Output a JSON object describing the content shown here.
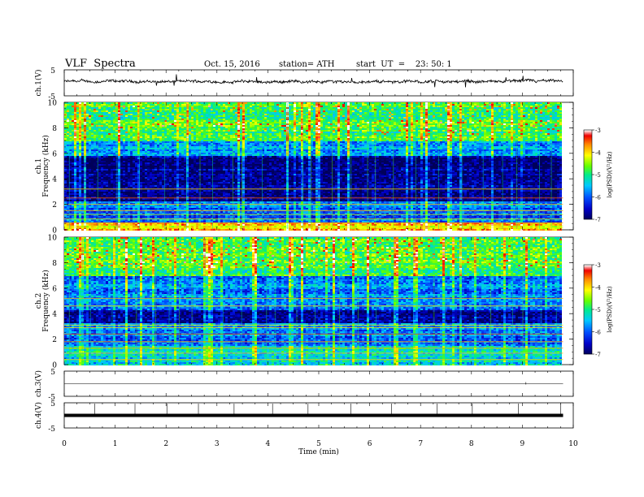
{
  "header": {
    "title": "VLF  Spectra",
    "date": "Oct. 15, 2016",
    "station": "station= ATH",
    "start": "start  UT  =    23: 50: 1"
  },
  "chart_data": [
    {
      "type": "line",
      "panel": "ch1-waveform",
      "ylabel": "ch.1(V)",
      "ylim": [
        -5,
        5
      ],
      "yticks": [
        "5",
        "-5"
      ],
      "xlim": [
        0,
        10
      ],
      "x_extent": [
        0,
        9.8
      ],
      "baseline_v": 0.5,
      "noise_amplitude_v": "±0.6 with spikes to ±3"
    },
    {
      "type": "heatmap",
      "panel": "ch1-spectrogram",
      "ylabel_channel": "ch.1",
      "ylabel": "Frequency  (kHz)",
      "ylim": [
        0,
        10
      ],
      "yticks": [
        "0",
        "2",
        "4",
        "6",
        "8",
        "10"
      ],
      "xlim": [
        0,
        10
      ],
      "x_extent": [
        0,
        9.8
      ],
      "colorbar": {
        "label": "log(PSD)(V²/Hz)",
        "range": [
          -7,
          -3
        ],
        "ticks": [
          "-3",
          "-4",
          "-5",
          "-6",
          "-7"
        ]
      },
      "band_profile": [
        {
          "khz": [
            0,
            0.6
          ],
          "logpsd": -4.0
        },
        {
          "khz": [
            0.6,
            2.2
          ],
          "logpsd": -5.9
        },
        {
          "khz": [
            2.2,
            5.8
          ],
          "logpsd": -6.8
        },
        {
          "khz": [
            5.8,
            7.0
          ],
          "logpsd": -5.7
        },
        {
          "khz": [
            7.0,
            10
          ],
          "logpsd": -4.8
        }
      ]
    },
    {
      "type": "heatmap",
      "panel": "ch2-spectrogram",
      "ylabel_channel": "ch.2",
      "ylabel": "Frequency  (kHz)",
      "ylim": [
        0,
        10
      ],
      "yticks": [
        "0",
        "2",
        "4",
        "6",
        "8",
        "10"
      ],
      "xlim": [
        0,
        10
      ],
      "x_extent": [
        0,
        9.8
      ],
      "colorbar": {
        "label": "log(PSD)(V²/Hz)",
        "range": [
          -7,
          -3
        ],
        "ticks": [
          "-3",
          "-4",
          "-5",
          "-6",
          "-7"
        ]
      },
      "band_profile": [
        {
          "khz": [
            0,
            1.5
          ],
          "logpsd": -5.3
        },
        {
          "khz": [
            1.5,
            3.3
          ],
          "logpsd": -5.8
        },
        {
          "khz": [
            3.3,
            4.3
          ],
          "logpsd": -6.7
        },
        {
          "khz": [
            4.3,
            7.0
          ],
          "logpsd": -5.8
        },
        {
          "khz": [
            7.0,
            10
          ],
          "logpsd": -4.8
        }
      ]
    },
    {
      "type": "line",
      "panel": "ch3-waveform",
      "ylabel": "ch.3(V)",
      "ylim": [
        -5,
        5
      ],
      "yticks": [
        "5",
        "-5"
      ],
      "xlim": [
        0,
        10
      ],
      "x_extent": [
        0,
        9.8
      ],
      "baseline_v": 0.0
    },
    {
      "type": "line",
      "panel": "ch4-waveform",
      "ylabel": "ch.4(V)",
      "ylim": [
        -5,
        5
      ],
      "yticks": [
        "5",
        "-5"
      ],
      "xlim": [
        0,
        10
      ],
      "x_extent": [
        0,
        9.8
      ],
      "baseline_v": 0.0
    }
  ],
  "xaxis": {
    "label": "Time  (min)",
    "ticks": [
      "0",
      "1",
      "2",
      "3",
      "4",
      "5",
      "6",
      "7",
      "8",
      "9",
      "10"
    ]
  },
  "colors": {
    "scale": [
      "#000066",
      "#0000cc",
      "#0055ff",
      "#00ccff",
      "#00ee88",
      "#66ff00",
      "#ffff00",
      "#ff8800",
      "#ff0000",
      "#ffffff"
    ]
  }
}
